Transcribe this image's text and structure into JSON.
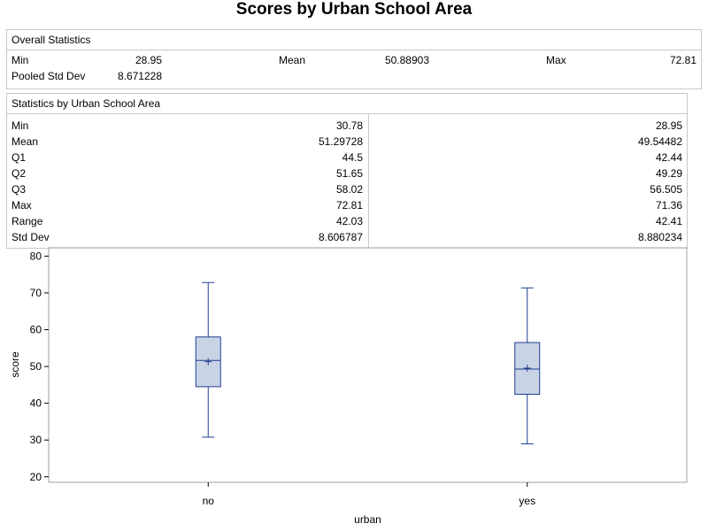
{
  "title": "Scores by Urban School Area",
  "overall": {
    "header": "Overall Statistics",
    "min_label": "Min",
    "min_value": "28.95",
    "mean_label": "Mean",
    "mean_value": "50.88903",
    "max_label": "Max",
    "max_value": "72.81",
    "pooled_label": "Pooled Std Dev",
    "pooled_value": "8.671228"
  },
  "by_area": {
    "header": "Statistics by Urban School Area",
    "rows": [
      {
        "label": "Min",
        "no": "30.78",
        "yes": "28.95"
      },
      {
        "label": "Mean",
        "no": "51.29728",
        "yes": "49.54482"
      },
      {
        "label": "Q1",
        "no": "44.5",
        "yes": "42.44"
      },
      {
        "label": "Q2",
        "no": "51.65",
        "yes": "49.29"
      },
      {
        "label": "Q3",
        "no": "58.02",
        "yes": "56.505"
      },
      {
        "label": "Max",
        "no": "72.81",
        "yes": "71.36"
      },
      {
        "label": "Range",
        "no": "42.03",
        "yes": "42.41"
      },
      {
        "label": "Std Dev",
        "no": "8.606787",
        "yes": "8.880234"
      }
    ]
  },
  "chart_data": {
    "type": "boxplot",
    "xlabel": "urban",
    "ylabel": "score",
    "categories": [
      "no",
      "yes"
    ],
    "ylim": [
      18.5,
      82.5
    ],
    "yticks": [
      20,
      30,
      40,
      50,
      60,
      70,
      80
    ],
    "boxes": [
      {
        "category": "no",
        "min": 30.78,
        "q1": 44.5,
        "median": 51.65,
        "q3": 58.02,
        "max": 72.81,
        "mean": 51.29728
      },
      {
        "category": "yes",
        "min": 28.95,
        "q1": 42.44,
        "median": 49.29,
        "q3": 56.505,
        "max": 71.36,
        "mean": 49.54482
      }
    ],
    "colors": {
      "stroke": "#1f3f8f",
      "fill": "#c9d3e6"
    }
  }
}
